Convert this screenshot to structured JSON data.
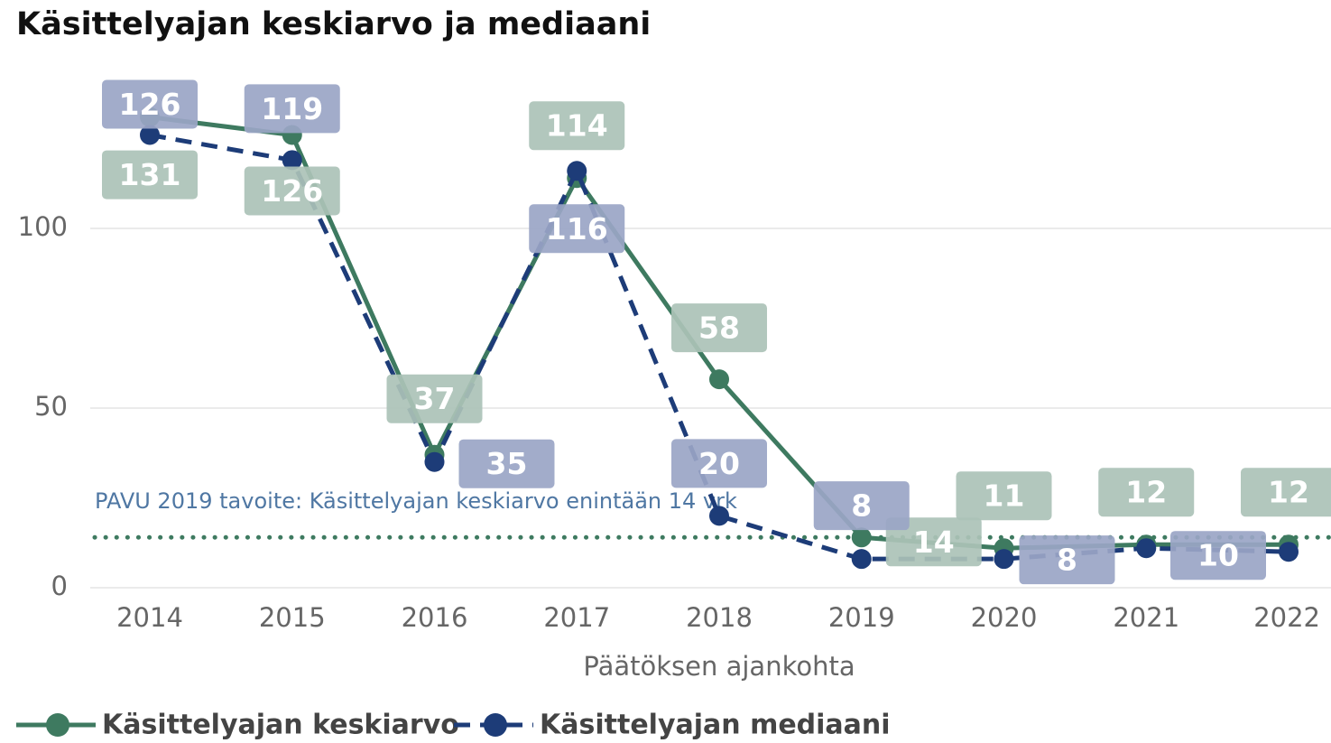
{
  "chart_data": {
    "type": "line",
    "title": "Käsittelyajan keskiarvo ja mediaani",
    "x_label": "Päätöksen ajankohta",
    "categories": [
      "2014",
      "2015",
      "2016",
      "2017",
      "2018",
      "2019",
      "2020",
      "2021",
      "2022"
    ],
    "series": [
      {
        "name": "Käsittelyajan keskiarvo",
        "color": "#3e7a60",
        "label_color": "#abc2b7",
        "dash": false,
        "values": [
          131,
          126,
          37,
          114,
          58,
          14,
          11,
          12,
          12
        ],
        "value_labels": [
          "131",
          "126",
          "37",
          "114",
          "58",
          "14",
          "11",
          "12",
          "12"
        ]
      },
      {
        "name": "Käsittelyajan mediaani",
        "color": "#1d3c78",
        "label_color": "#9aa5c5",
        "dash": true,
        "values": [
          126,
          119,
          35,
          116,
          20,
          8,
          8,
          11,
          10
        ],
        "value_labels": [
          "126",
          "119",
          "35",
          "116",
          "20",
          "8",
          "8",
          null,
          "10"
        ]
      }
    ],
    "reference_line": {
      "value": 14,
      "color": "#3e7a60",
      "label": "PAVU 2019 tavoite: Käsittelyajan keskiarvo enintään 14 vrk",
      "label_color": "#4f77a3"
    },
    "ylim": [
      0,
      142
    ],
    "yticks": [
      0,
      50,
      100
    ],
    "grid": true
  }
}
